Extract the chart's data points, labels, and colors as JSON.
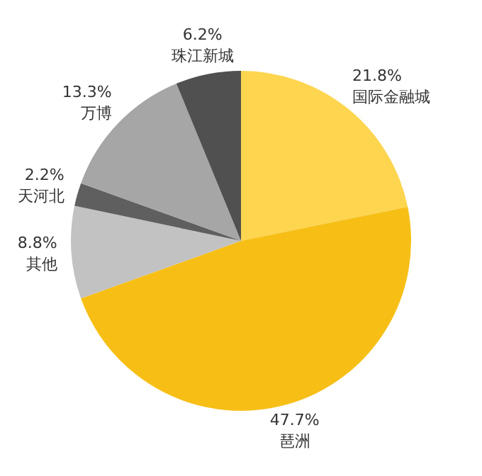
{
  "chart_data": {
    "type": "pie",
    "categories": [
      "国际金融城",
      "琶洲",
      "其他",
      "天河北",
      "万博",
      "珠江新城"
    ],
    "values": [
      21.8,
      47.7,
      8.8,
      2.2,
      13.3,
      6.2
    ],
    "value_labels": [
      "21.8%",
      "47.7%",
      "8.8%",
      "2.2%",
      "13.3%",
      "6.2%"
    ],
    "colors": [
      "#fed54f",
      "#f7bf16",
      "#c2c2c2",
      "#5f5f5f",
      "#a6a6a6",
      "#505050"
    ],
    "legend": false
  }
}
